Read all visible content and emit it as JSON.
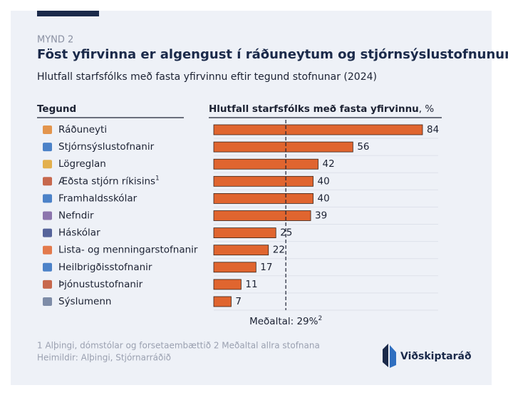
{
  "chart_data": {
    "type": "bar",
    "orientation": "horizontal",
    "figure_label": "MYND 2",
    "title": "Föst yfirvinna er algengust í ráðuneytum og stjórnsýslustofnunum",
    "subtitle": "Hlutfall starfsfólks með fasta yfirvinnu eftir tegund stofnunar (2024)",
    "category_header": "Tegund",
    "x_label": "Hlutfall starfsfólks með fasta yfirvinnu",
    "x_unit": ", %",
    "categories": [
      "Ráðuneyti",
      "Stjórnsýslustofnanir",
      "Lögreglan",
      "Æðsta stjórn ríkisins",
      "Framhaldsskólar",
      "Nefndir",
      "Háskólar",
      "Lista- og menningarstofnanir",
      "Heilbrigðisstofnanir",
      "Þjónustustofnanir",
      "Sýslumenn"
    ],
    "category_footnotes": {
      "3": "1"
    },
    "values": [
      84,
      56,
      42,
      40,
      40,
      39,
      25,
      22,
      17,
      11,
      7
    ],
    "color": "#e0652f",
    "reference_line": {
      "value": 29,
      "label": "Meðaltal: 29%",
      "footnote": "2"
    },
    "footnotes": "1 Alþingi, dómstólar og forsetaembættið 2 Meðaltal allra stofnana",
    "source": "Heimildir: Alþingi, Stjórnarráðið",
    "brand": "Viðskiptaráð"
  }
}
